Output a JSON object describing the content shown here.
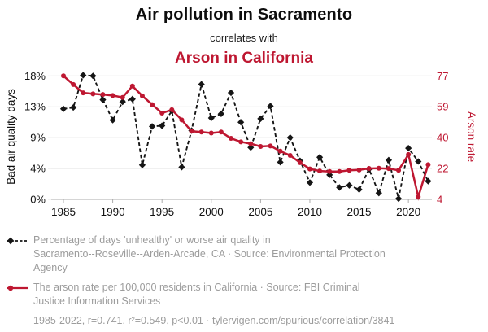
{
  "header": {
    "title": "Air pollution in Sacramento",
    "connector": "correlates with",
    "title_secondary": "Arson in California"
  },
  "colors": {
    "accent_red": "#be1731",
    "series_black": "#151515",
    "grid": "#e7e7e7",
    "axis_line": "#ababab",
    "legend_gray": "#9c9c9c"
  },
  "chart_data": {
    "type": "line",
    "x": [
      1985,
      1986,
      1987,
      1988,
      1989,
      1990,
      1991,
      1992,
      1993,
      1994,
      1995,
      1996,
      1997,
      1998,
      1999,
      2000,
      2001,
      2002,
      2003,
      2004,
      2005,
      2006,
      2007,
      2008,
      2009,
      2010,
      2011,
      2012,
      2013,
      2014,
      2015,
      2016,
      2017,
      2018,
      2019,
      2020,
      2021,
      2022
    ],
    "series": [
      {
        "name": "air_quality",
        "label": "Percentage of days 'unhealthy' or worse air quality in Sacramento--Roseville--Arden-Arcade, CA",
        "axis": "left",
        "style": "dashed-diamond",
        "color": "#151515",
        "values": [
          12.9,
          13.1,
          17.7,
          17.6,
          14.2,
          11.3,
          13.9,
          14.3,
          4.9,
          10.4,
          10.5,
          12.6,
          4.6,
          9.8,
          16.4,
          11.6,
          12.2,
          15.2,
          11.0,
          7.4,
          11.5,
          13.3,
          5.3,
          8.8,
          5.5,
          2.4,
          6.0,
          3.5,
          1.7,
          2.0,
          1.4,
          4.3,
          0.9,
          5.6,
          0.1,
          7.3,
          5.4,
          2.6
        ]
      },
      {
        "name": "arson_rate",
        "label": "The arson rate per 100,000 residents in California",
        "axis": "right",
        "style": "solid-dot",
        "color": "#be1731",
        "values": [
          77.0,
          71.9,
          67.0,
          66.4,
          66.0,
          65.4,
          64.3,
          71.0,
          65.2,
          60.0,
          55.0,
          57.0,
          51.0,
          44.3,
          43.8,
          43.2,
          43.8,
          40.1,
          38.0,
          36.9,
          35.3,
          35.6,
          32.5,
          30.0,
          25.7,
          22.0,
          20.8,
          20.5,
          20.5,
          21.2,
          21.4,
          22.3,
          22.4,
          22.2,
          21.2,
          30.5,
          5.5,
          24.5
        ]
      }
    ],
    "x_axis": {
      "range": [
        1985,
        2022
      ],
      "tick_years": [
        1985,
        1990,
        1995,
        2000,
        2005,
        2010,
        2015,
        2020
      ],
      "tick_labels": [
        "1985",
        "1990",
        "1995",
        "2000",
        "2005",
        "2010",
        "2015",
        "2020"
      ]
    },
    "y_axis_left": {
      "title": "Bad air quality days",
      "range": [
        0,
        17.6
      ],
      "tick_values": [
        17.6,
        13.2,
        8.8,
        4.4,
        0
      ],
      "tick_labels": [
        "18%",
        "13%",
        "9%",
        "4%",
        "0%"
      ]
    },
    "y_axis_right": {
      "title": "Arson rate",
      "range": [
        4,
        77
      ],
      "tick_values": [
        77,
        58.75,
        40.5,
        22.25,
        4
      ],
      "tick_labels": [
        "77",
        "59",
        "40",
        "22",
        "4"
      ]
    },
    "grid": true,
    "legend_position": "bottom-left"
  },
  "legend": {
    "items": [
      {
        "series": "air_quality",
        "lines": [
          "Percentage of days 'unhealthy' or worse air quality in",
          "Sacramento--Roseville--Arden-Arcade, CA · Source: Environmental Protection",
          "Agency"
        ]
      },
      {
        "series": "arson_rate",
        "lines": [
          "The arson rate per 100,000 residents in California · Source: FBI Criminal",
          "Justice Information Services"
        ]
      }
    ]
  },
  "footer": {
    "stats": "1985-2022, r=0.741, r²=0.549, p<0.01 · tylervigen.com/spurious/correlation/3841"
  }
}
